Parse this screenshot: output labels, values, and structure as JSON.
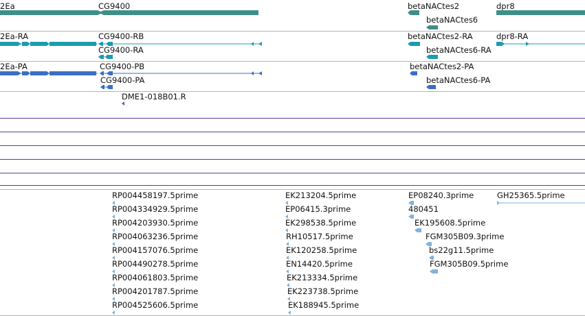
{
  "colors": {
    "gene": "#3f8f89",
    "transcript_ra": "#1a9cb0",
    "transcript_pa": "#3a6fc6",
    "primer": "#7d52a3",
    "track_line": "#5a3d8c",
    "est": "#82b2da",
    "divider": "#b4b4b4",
    "label": "#111111"
  },
  "tracks": {
    "genes": {
      "features": [
        {
          "label": "2Ea"
        },
        {
          "label": "CG9400"
        },
        {
          "label": "betaNACtes2"
        },
        {
          "label": "betaNACtes6"
        },
        {
          "label": "dpr8"
        }
      ]
    },
    "transcripts": {
      "features": [
        {
          "label": "2Ea-RA"
        },
        {
          "label": "CG9400-RB"
        },
        {
          "label": "CG9400-RA"
        },
        {
          "label": "betaNACtes2-RA"
        },
        {
          "label": "betaNACtes6-RA"
        },
        {
          "label": "dpr8-RA"
        }
      ]
    },
    "proteins": {
      "features": [
        {
          "label": "2Ea-PA"
        },
        {
          "label": "CG9400-PB"
        },
        {
          "label": "CG9400-PA"
        },
        {
          "label": "betaNACtes2-PA"
        },
        {
          "label": "betaNACtes6-PA"
        }
      ]
    },
    "primers": {
      "features": [
        {
          "label": "DME1-018B01.R"
        }
      ]
    },
    "ests": {
      "features": [
        {
          "label": "RP004458197.5prime"
        },
        {
          "label": "RP004334929.5prime"
        },
        {
          "label": "RP004203930.5prime"
        },
        {
          "label": "RP004063236.5prime"
        },
        {
          "label": "RP004157076.5prime"
        },
        {
          "label": "RP004490278.5prime"
        },
        {
          "label": "RP004061803.5prime"
        },
        {
          "label": "RP004201787.5prime"
        },
        {
          "label": "RP004525606.5prime"
        },
        {
          "label": "EK213204.5prime"
        },
        {
          "label": "EP06415.3prime"
        },
        {
          "label": "EK298538.5prime"
        },
        {
          "label": "RH10517.5prime"
        },
        {
          "label": "EK120258.5prime"
        },
        {
          "label": "EN14420.5prime"
        },
        {
          "label": "EK213334.5prime"
        },
        {
          "label": "EK223738.5prime"
        },
        {
          "label": "EK188945.5prime"
        },
        {
          "label": "EP08240.3prime"
        },
        {
          "label": "480451"
        },
        {
          "label": "EK195608.5prime"
        },
        {
          "label": "FGM305B09.3prime"
        },
        {
          "label": "bs22g11.5prime"
        },
        {
          "label": "FGM305B09.5prime"
        },
        {
          "label": "GH25365.5prime"
        }
      ]
    }
  }
}
